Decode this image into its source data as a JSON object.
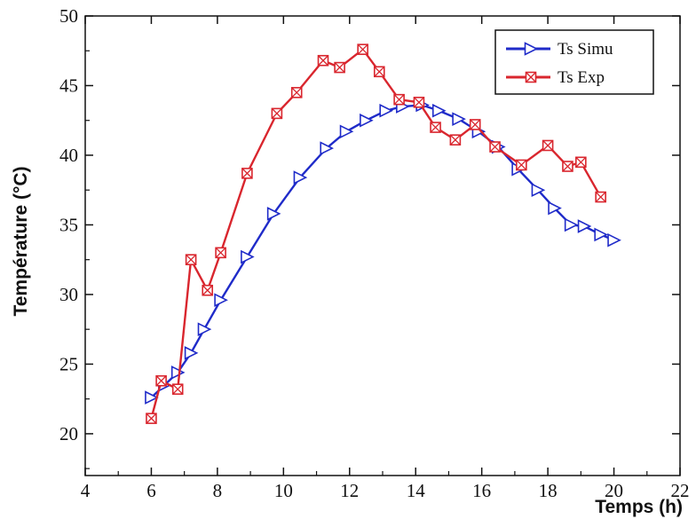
{
  "chart_data": {
    "type": "line",
    "xlabel": "Temps (h)",
    "ylabel": "Température (°C)",
    "xlim": [
      4,
      22
    ],
    "ylim": [
      17,
      50
    ],
    "xticks": [
      4,
      6,
      8,
      10,
      12,
      14,
      16,
      18,
      20,
      22
    ],
    "yticks": [
      20,
      25,
      30,
      35,
      40,
      45,
      50
    ],
    "grid": false,
    "legend": "top-right",
    "series": [
      {
        "name": "Ts Simu",
        "color": "#1f2bc9",
        "marker": "triangle-right",
        "x": [
          6.0,
          6.4,
          6.8,
          7.2,
          7.6,
          8.1,
          8.9,
          9.7,
          10.5,
          11.3,
          11.9,
          12.5,
          13.1,
          13.6,
          14.2,
          14.7,
          15.3,
          15.9,
          16.5,
          17.1,
          17.7,
          18.2,
          18.7,
          19.1,
          19.6,
          20.0
        ],
        "y": [
          22.6,
          23.5,
          24.4,
          25.8,
          27.5,
          29.6,
          32.7,
          35.8,
          38.4,
          40.5,
          41.7,
          42.5,
          43.2,
          43.5,
          43.6,
          43.2,
          42.6,
          41.7,
          40.6,
          39.0,
          37.5,
          36.2,
          35.0,
          34.9,
          34.3,
          33.9
        ]
      },
      {
        "name": "Ts Exp",
        "color": "#d9262e",
        "marker": "square-x",
        "x": [
          6.0,
          6.3,
          6.8,
          7.2,
          7.7,
          8.1,
          8.9,
          9.8,
          10.4,
          11.2,
          11.7,
          12.4,
          12.9,
          13.5,
          14.1,
          14.6,
          15.2,
          15.8,
          16.4,
          17.2,
          18.0,
          18.6,
          19.0,
          19.6
        ],
        "y": [
          21.1,
          23.8,
          23.2,
          32.5,
          30.3,
          33.0,
          38.7,
          43.0,
          44.5,
          46.8,
          46.3,
          47.6,
          46.0,
          44.0,
          43.8,
          42.0,
          41.1,
          42.2,
          40.6,
          39.3,
          40.7,
          39.2,
          39.5,
          37.0
        ]
      }
    ]
  }
}
